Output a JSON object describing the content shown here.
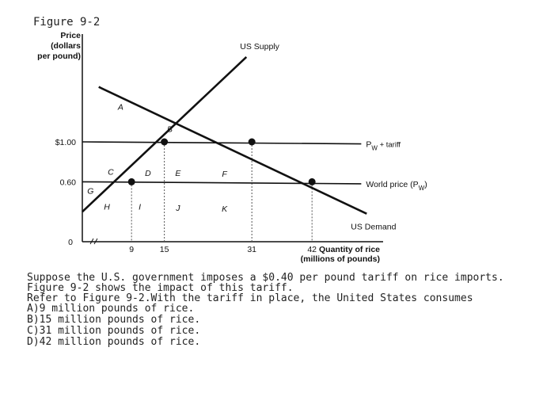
{
  "figure_label": "Figure 9-2",
  "question": {
    "stem": "Suppose the U.S. government imposes a $0.40 per pound tariff on rice imports. Figure 9-2 shows the impact of this tariff.",
    "prompt": "Refer to Figure 9-2.With the tariff in place, the United States consumes",
    "choices": [
      "A)9 million pounds of rice.",
      "B)15 million pounds of rice.",
      "C)31 million pounds of rice.",
      "D)42 million pounds of rice."
    ]
  },
  "chart_data": {
    "type": "line",
    "ylabel": [
      "Price",
      "(dollars",
      "per pound)"
    ],
    "xlabel": [
      "Quantity of rice",
      "(millions of pounds)"
    ],
    "xlim": [
      0,
      55
    ],
    "ylim": [
      0,
      2.0
    ],
    "origin_label": "0",
    "x_ticks": [
      {
        "value": 9,
        "label": "9"
      },
      {
        "value": 15,
        "label": "15"
      },
      {
        "value": 31,
        "label": "31"
      },
      {
        "value": 42,
        "label": "42"
      }
    ],
    "y_ticks": [
      {
        "value": 1.0,
        "label": "$1.00"
      },
      {
        "value": 0.6,
        "label": "0.60"
      }
    ],
    "series": [
      {
        "name": "US Supply",
        "kind": "supply",
        "points": [
          [
            0,
            0.3
          ],
          [
            30,
            1.85
          ]
        ]
      },
      {
        "name": "US Demand",
        "kind": "demand",
        "points": [
          [
            3,
            1.55
          ],
          [
            52,
            0.28
          ]
        ]
      },
      {
        "name": "PW + tariff",
        "kind": "price",
        "points": [
          [
            0,
            1.0
          ],
          [
            51,
            0.98
          ]
        ]
      },
      {
        "name": "World price (PW)",
        "kind": "price",
        "points": [
          [
            0,
            0.6
          ],
          [
            51,
            0.58
          ]
        ]
      }
    ],
    "line_labels": {
      "supply": "US Supply",
      "demand": "US Demand",
      "tariff_main": "P",
      "tariff_sub": "W",
      "tariff_rest": " + tariff",
      "world_main": "World price (P",
      "world_sub": "W",
      "world_rest": ")"
    },
    "region_labels": [
      {
        "label": "A",
        "x": 7,
        "y": 1.32
      },
      {
        "label": "B",
        "x": 16,
        "y": 1.1
      },
      {
        "label": "C",
        "x": 5.2,
        "y": 0.67
      },
      {
        "label": "D",
        "x": 12,
        "y": 0.66
      },
      {
        "label": "E",
        "x": 17.5,
        "y": 0.66
      },
      {
        "label": "F",
        "x": 26,
        "y": 0.65
      },
      {
        "label": "G",
        "x": 1.5,
        "y": 0.48
      },
      {
        "label": "H",
        "x": 4.5,
        "y": 0.32
      },
      {
        "label": "I",
        "x": 10.5,
        "y": 0.32
      },
      {
        "label": "J",
        "x": 17.5,
        "y": 0.31
      },
      {
        "label": "K",
        "x": 26,
        "y": 0.3
      }
    ],
    "points": [
      {
        "x": 9,
        "y": 0.6
      },
      {
        "x": 15,
        "y": 1.0
      },
      {
        "x": 31,
        "y": 1.0
      },
      {
        "x": 42,
        "y": 0.6
      }
    ],
    "dashed_x": [
      9,
      15,
      31,
      42
    ]
  }
}
